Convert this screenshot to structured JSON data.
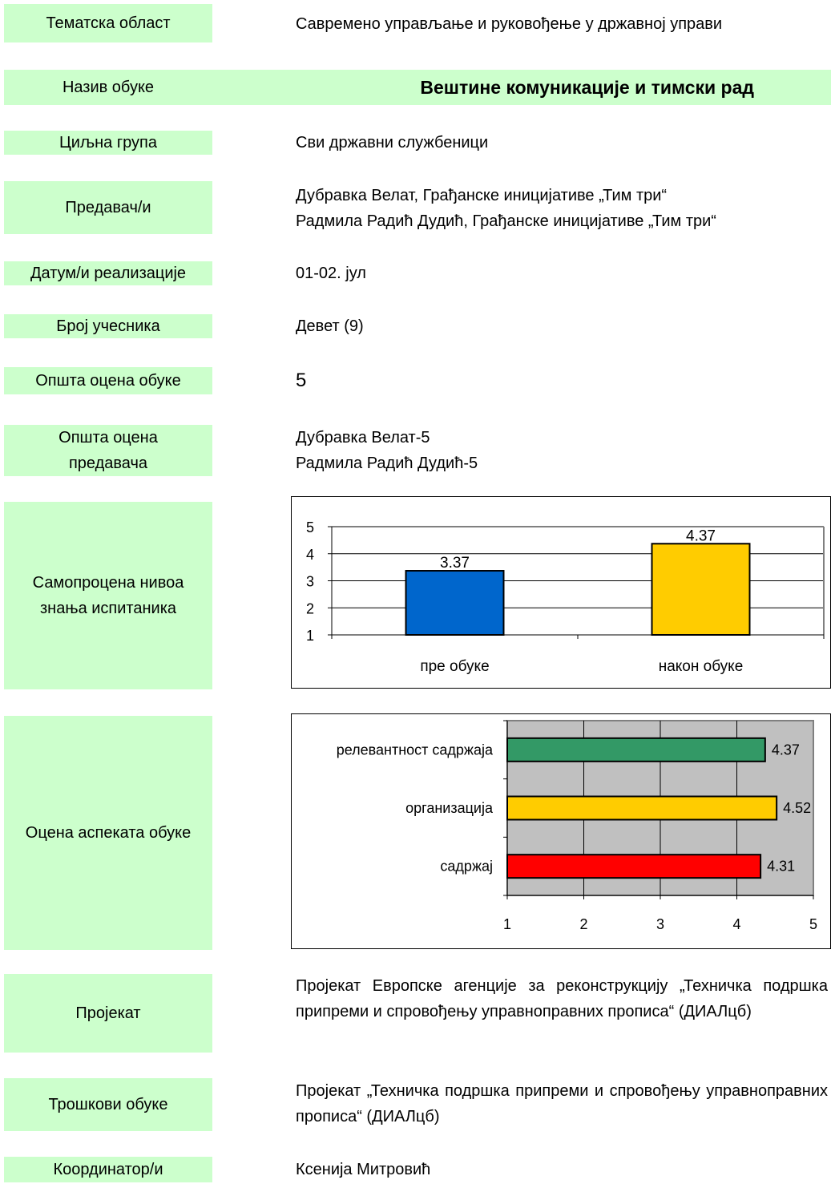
{
  "fields": {
    "tematska_label": "Тематска област",
    "tematska_value": "Савремено управљање и руковођење у државној управи",
    "naziv_label": "Назив обуке",
    "naziv_value": "Вештине комуникације и тимски рад",
    "ciljna_label": "Циљна група",
    "ciljna_value": "Сви државни службеници",
    "predavaci_label": "Предавач/и",
    "predavaci_line1": "Дубравка Велат, Грађанске иницијативе „Тим три“",
    "predavaci_line2": "Радмила Радић Дудић, Грађанске иницијативе „Тим три“",
    "datum_label": "Датум/и реализације",
    "datum_value": "01-02. јул",
    "broj_label": "Број учесника",
    "broj_value": "Девет (9)",
    "opsta_label": "Општа оцена обуке",
    "opsta_value": "5",
    "opsta_pred_label_1": "Општа оцена",
    "opsta_pred_label_2": "предавача",
    "opsta_pred_line1": "Дубравка Велат-5",
    "opsta_pred_line2": "Радмила Радић Дудић-5",
    "samoprocena_label_1": "Самопроцена нивоа",
    "samoprocena_label_2": "знања испитаника",
    "ocena_aspekata_label": "Оцена аспеката обуке",
    "projekat_label": "Пројекат",
    "projekat_value": "Пројекат Европске агенције за реконструкцију „Техничка подршка припреми и спровођењу управноправних прописа“ (ДИАЛцб)",
    "troskovi_label": "Трошкови обуке",
    "troskovi_value": "Пројекат „Техничка подршка припреми и спровођењу управноправних прописа“ (ДИАЛцб)",
    "koordinator_label": "Координатор/и",
    "koordinator_value": "Ксенија Митровић"
  },
  "colors": {
    "label_bg": "#ccffcc",
    "bar_before": "#0066cc",
    "bar_after": "#ffcc00",
    "bar_relevance": "#339966",
    "bar_organization": "#ffcc00",
    "bar_content": "#ff0000",
    "plot_bg_aspects": "#c0c0c0"
  },
  "chart_data": [
    {
      "type": "bar",
      "categories": [
        "пре обуке",
        "након обуке"
      ],
      "values": [
        3.37,
        4.37
      ],
      "value_labels": [
        "3.37",
        "4.37"
      ],
      "ylim": [
        1,
        5
      ],
      "yticks": [
        "1",
        "2",
        "3",
        "4",
        "5"
      ],
      "grid": true
    },
    {
      "type": "bar",
      "orientation": "horizontal",
      "categories": [
        "релевантност садржаја",
        "организација",
        "садржај"
      ],
      "values": [
        4.37,
        4.52,
        4.31
      ],
      "value_labels": [
        "4.37",
        "4.52",
        "4.31"
      ],
      "xlim": [
        1,
        5
      ],
      "xticks": [
        "1",
        "2",
        "3",
        "4",
        "5"
      ],
      "grid": true
    }
  ]
}
